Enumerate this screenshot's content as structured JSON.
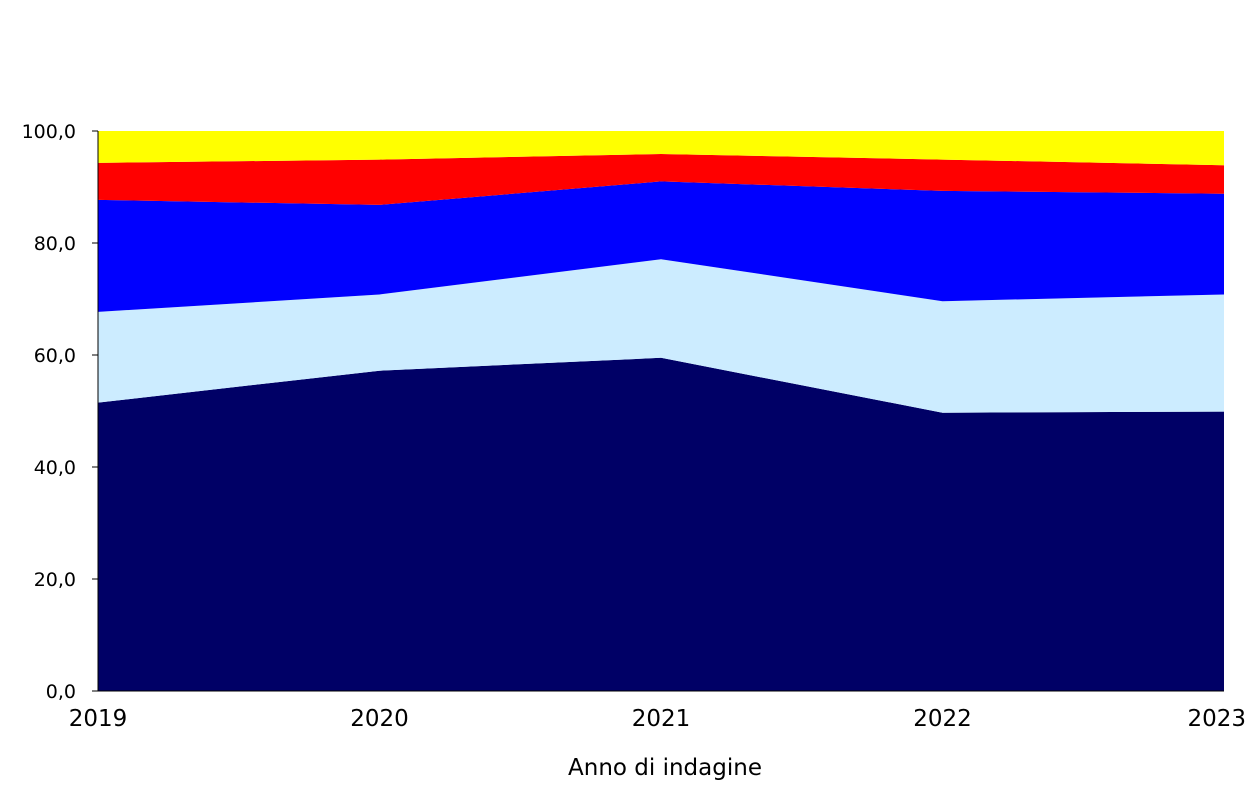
{
  "chart_data": {
    "type": "area",
    "stacked": true,
    "x": [
      "2019",
      "2020",
      "2021",
      "2022",
      "2023"
    ],
    "xlabel": "Anno di indagine",
    "ylabel": "",
    "title": "",
    "ylim": [
      0,
      100
    ],
    "yticks": [
      0,
      20,
      40,
      60,
      80,
      100
    ],
    "ytick_labels": [
      "0,0",
      "20,0",
      "40,0",
      "60,0",
      "80,0",
      "100,0"
    ],
    "grid": false,
    "legend": "none",
    "series": [
      {
        "color": "#000066",
        "values": [
          51.5,
          57.2,
          59.5,
          49.7,
          49.9
        ]
      },
      {
        "color": "#CCECFF",
        "values": [
          16.2,
          13.6,
          17.6,
          19.9,
          20.9
        ]
      },
      {
        "color": "#0000FF",
        "values": [
          20.0,
          16.0,
          13.9,
          19.7,
          18.0
        ]
      },
      {
        "color": "#FF0000",
        "values": [
          6.6,
          8.1,
          4.9,
          5.6,
          5.1
        ]
      },
      {
        "color": "#FFFF00",
        "values": [
          5.7,
          5.1,
          4.1,
          5.1,
          6.1
        ]
      }
    ]
  }
}
